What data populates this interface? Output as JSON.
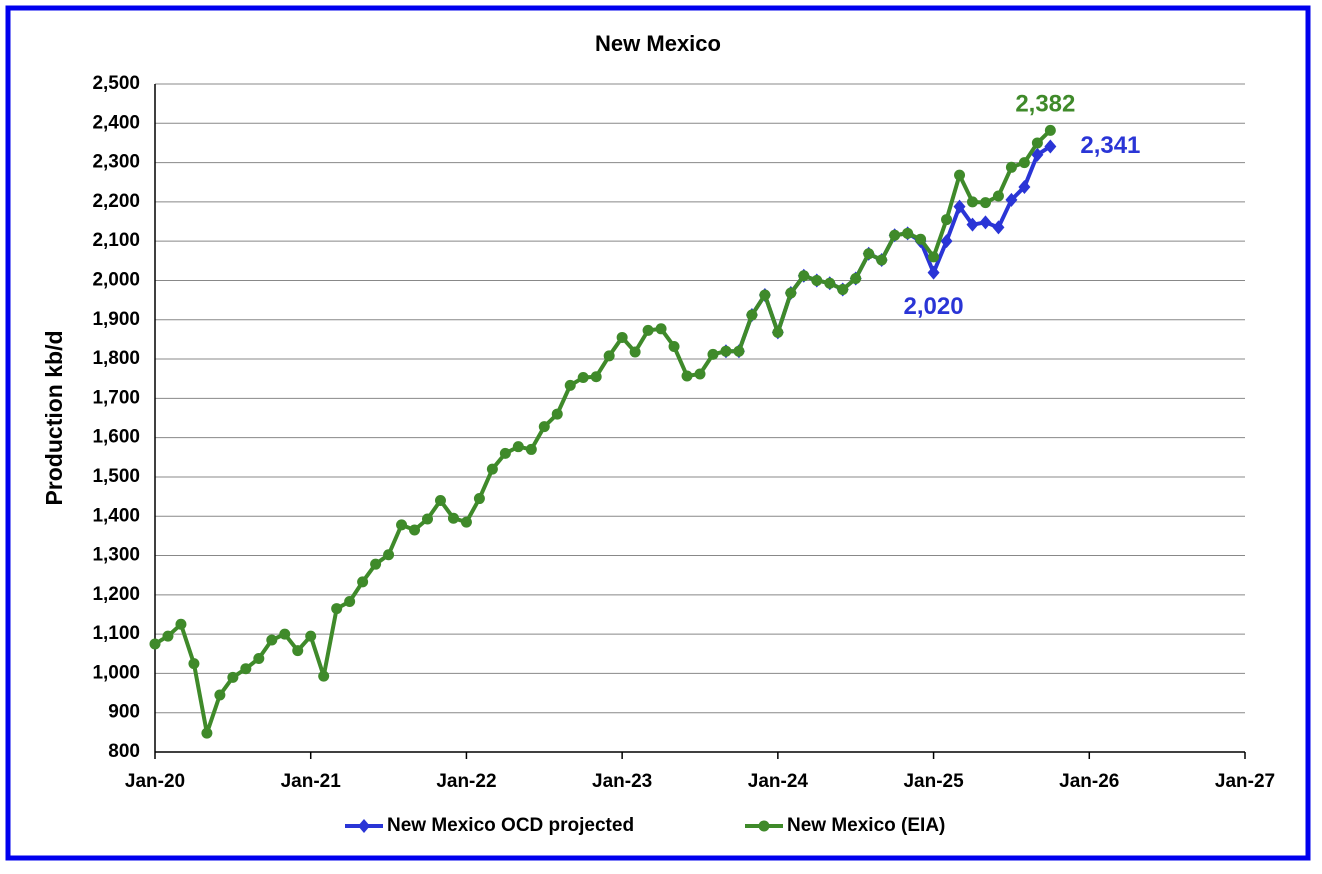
{
  "chart_data": {
    "type": "line",
    "title": "New Mexico",
    "y_label": "Production kb/d",
    "x": [
      "2020-01",
      "2020-02",
      "2020-03",
      "2020-04",
      "2020-05",
      "2020-06",
      "2020-07",
      "2020-08",
      "2020-09",
      "2020-10",
      "2020-11",
      "2020-12",
      "2021-01",
      "2021-02",
      "2021-03",
      "2021-04",
      "2021-05",
      "2021-06",
      "2021-07",
      "2021-08",
      "2021-09",
      "2021-10",
      "2021-11",
      "2021-12",
      "2022-01",
      "2022-02",
      "2022-03",
      "2022-04",
      "2022-05",
      "2022-06",
      "2022-07",
      "2022-08",
      "2022-09",
      "2022-10",
      "2022-11",
      "2022-12",
      "2023-01",
      "2023-02",
      "2023-03",
      "2023-04",
      "2023-05",
      "2023-06",
      "2023-07",
      "2023-08",
      "2023-09",
      "2023-10",
      "2023-11",
      "2023-12",
      "2024-01",
      "2024-02",
      "2024-03",
      "2024-04",
      "2024-05",
      "2024-06",
      "2024-07",
      "2024-08",
      "2024-09",
      "2024-10",
      "2024-11",
      "2024-12",
      "2025-01",
      "2025-02",
      "2025-03",
      "2025-04",
      "2025-05",
      "2025-06",
      "2025-07",
      "2025-08",
      "2025-09",
      "2025-10"
    ],
    "series": [
      {
        "name": "New Mexico OCD projected",
        "color": "#2a35d6",
        "marker": "diamond",
        "values": [
          null,
          null,
          null,
          null,
          null,
          null,
          null,
          null,
          null,
          null,
          null,
          null,
          null,
          null,
          null,
          null,
          null,
          null,
          null,
          null,
          null,
          null,
          null,
          null,
          null,
          null,
          null,
          null,
          null,
          null,
          null,
          null,
          null,
          null,
          null,
          null,
          null,
          null,
          null,
          null,
          null,
          null,
          null,
          null,
          1820,
          1820,
          1912,
          1963,
          1868,
          1968,
          2012,
          2000,
          1993,
          1977,
          2005,
          2068,
          2052,
          2115,
          2120,
          2100,
          2020,
          2100,
          2188,
          2142,
          2148,
          2135,
          2205,
          2238,
          2320,
          2341
        ],
        "value_labels": [
          null,
          null,
          null,
          null,
          null,
          null,
          null,
          null,
          null,
          null,
          null,
          null,
          null,
          null,
          null,
          null,
          null,
          null,
          null,
          null,
          null,
          null,
          null,
          null,
          null,
          null,
          null,
          null,
          null,
          null,
          null,
          null,
          null,
          null,
          null,
          null,
          null,
          null,
          null,
          null,
          null,
          null,
          null,
          null,
          null,
          null,
          null,
          null,
          null,
          null,
          null,
          null,
          null,
          null,
          null,
          null,
          null,
          null,
          null,
          null,
          "2,020",
          null,
          null,
          null,
          null,
          null,
          null,
          null,
          null,
          "2,341"
        ]
      },
      {
        "name": "New Mexico (EIA)",
        "color": "#3f8a2a",
        "marker": "circle",
        "values": [
          1075,
          1095,
          1125,
          1025,
          848,
          945,
          990,
          1012,
          1038,
          1085,
          1100,
          1058,
          1095,
          993,
          1165,
          1183,
          1233,
          1278,
          1302,
          1378,
          1365,
          1393,
          1440,
          1395,
          1385,
          1445,
          1520,
          1560,
          1577,
          1570,
          1628,
          1660,
          1733,
          1753,
          1755,
          1808,
          1855,
          1818,
          1873,
          1877,
          1832,
          1757,
          1762,
          1812,
          1820,
          1820,
          1912,
          1963,
          1868,
          1968,
          2012,
          2000,
          1993,
          1977,
          2005,
          2068,
          2052,
          2115,
          2120,
          2105,
          2060,
          2155,
          2268,
          2200,
          2198,
          2215,
          2288,
          2300,
          2350,
          2382
        ],
        "value_labels": [
          null,
          null,
          null,
          null,
          null,
          null,
          null,
          null,
          null,
          null,
          null,
          null,
          null,
          null,
          null,
          null,
          null,
          null,
          null,
          null,
          null,
          null,
          null,
          null,
          null,
          null,
          null,
          null,
          null,
          null,
          null,
          null,
          null,
          null,
          null,
          null,
          null,
          null,
          null,
          null,
          null,
          null,
          null,
          null,
          null,
          null,
          null,
          null,
          null,
          null,
          null,
          null,
          null,
          null,
          null,
          null,
          null,
          null,
          null,
          null,
          null,
          null,
          null,
          null,
          null,
          null,
          null,
          null,
          null,
          "2,382"
        ]
      }
    ],
    "xlim": [
      "2020-01",
      "2027-01"
    ],
    "xticks": [
      {
        "value": "2020-01",
        "label": "Jan-20"
      },
      {
        "value": "2021-01",
        "label": "Jan-21"
      },
      {
        "value": "2022-01",
        "label": "Jan-22"
      },
      {
        "value": "2023-01",
        "label": "Jan-23"
      },
      {
        "value": "2024-01",
        "label": "Jan-24"
      },
      {
        "value": "2025-01",
        "label": "Jan-25"
      },
      {
        "value": "2026-01",
        "label": "Jan-26"
      },
      {
        "value": "2027-01",
        "label": "Jan-27"
      }
    ],
    "ylim": [
      800,
      2500
    ],
    "yticks": [
      800,
      900,
      {
        "value": 1000,
        "label": "1,000"
      },
      {
        "value": 1100,
        "label": "1,100"
      },
      {
        "value": 1200,
        "label": "1,200"
      },
      {
        "value": 1300,
        "label": "1,300"
      },
      {
        "value": 1400,
        "label": "1,400"
      },
      {
        "value": 1500,
        "label": "1,500"
      },
      {
        "value": 1600,
        "label": "1,600"
      },
      {
        "value": 1700,
        "label": "1,700"
      },
      {
        "value": 1800,
        "label": "1,800"
      },
      {
        "value": 1900,
        "label": "1,900"
      },
      {
        "value": 2000,
        "label": "2,000"
      },
      {
        "value": 2100,
        "label": "2,100"
      },
      {
        "value": 2200,
        "label": "2,200"
      },
      {
        "value": 2300,
        "label": "2,300"
      },
      {
        "value": 2400,
        "label": "2,400"
      },
      {
        "value": 2500,
        "label": "2,500"
      }
    ],
    "grid": true,
    "legend": "bottom"
  }
}
